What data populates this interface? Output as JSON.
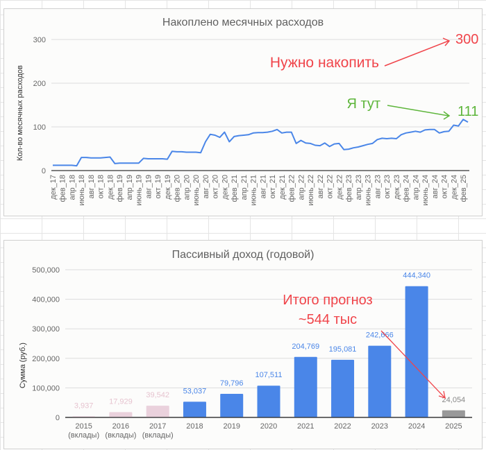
{
  "chart_data": [
    {
      "type": "line",
      "title": "Накоплено месячных расходов",
      "xlabel": "",
      "ylabel": "Кол-во месячных расходов",
      "ylim": [
        0,
        300
      ],
      "yticks": [
        "0",
        "100",
        "200",
        "300"
      ],
      "grid": true,
      "x_tick_labels": [
        "дек_17",
        "фев_18",
        "апр_18",
        "июнь_18",
        "авг_18",
        "окт_18",
        "дек_18",
        "фев_19",
        "апр_19",
        "июнь_19",
        "авг_19",
        "окт_19",
        "дек_19",
        "фев_20",
        "апр_20",
        "июнь_20",
        "авг_20",
        "окт_20",
        "дек_20",
        "фев_21",
        "апр_21",
        "июнь_21",
        "авг_21",
        "окт_21",
        "дек_21",
        "фев_22",
        "апр_22",
        "июнь_22",
        "авг_22",
        "окт_22",
        "дек_22",
        "фев_23",
        "апр_23",
        "июнь_23",
        "авг_23",
        "окт_23",
        "дек_23",
        "фев_24",
        "апр_24",
        "июнь_24",
        "авг_24",
        "окт_24",
        "дек_24",
        "фев_25"
      ],
      "series": [
        {
          "name": "Накоплено",
          "color": "#4a86e8",
          "values": [
            12,
            12,
            12,
            12,
            12,
            11,
            30,
            30,
            29,
            29,
            29,
            30,
            31,
            16,
            17,
            17,
            17,
            17,
            17,
            28,
            27,
            27,
            27,
            27,
            26,
            44,
            43,
            43,
            42,
            42,
            42,
            41,
            66,
            83,
            81,
            76,
            88,
            66,
            78,
            80,
            81,
            82,
            86,
            87,
            87,
            88,
            90,
            94,
            86,
            88,
            88,
            62,
            69,
            63,
            62,
            58,
            57,
            63,
            55,
            61,
            62,
            48,
            49,
            52,
            54,
            57,
            60,
            62,
            71,
            74,
            73,
            74,
            73,
            82,
            86,
            88,
            90,
            88,
            93,
            94,
            94,
            86,
            89,
            90,
            104,
            102,
            117,
            111
          ]
        }
      ],
      "annotations": [
        {
          "text": "Нужно накопить",
          "color": "#f0444a"
        },
        {
          "text": "300",
          "color": "#f0444a"
        },
        {
          "text": "Я тут",
          "color": "#5db53a"
        },
        {
          "text": "111",
          "color": "#5db53a"
        }
      ]
    },
    {
      "type": "bar",
      "title": "Пассивный доход (годовой)",
      "xlabel": "",
      "ylabel": "Сумма (руб.)",
      "ylim": [
        0,
        500000
      ],
      "yticks": [
        "0",
        "100,000",
        "200,000",
        "300,000",
        "400,000",
        "500,000"
      ],
      "grid": true,
      "categories": [
        {
          "year": "2015",
          "sub": "(вклады)"
        },
        {
          "year": "2016",
          "sub": "(вклады)"
        },
        {
          "year": "2017",
          "sub": "(вклады)"
        },
        {
          "year": "2018",
          "sub": ""
        },
        {
          "year": "2019",
          "sub": ""
        },
        {
          "year": "2020",
          "sub": ""
        },
        {
          "year": "2021",
          "sub": ""
        },
        {
          "year": "2022",
          "sub": ""
        },
        {
          "year": "2023",
          "sub": ""
        },
        {
          "year": "2024",
          "sub": ""
        },
        {
          "year": "2025",
          "sub": ""
        }
      ],
      "values": [
        3937,
        17929,
        39542,
        53037,
        79796,
        107511,
        204769,
        195081,
        242666,
        444340,
        24054
      ],
      "value_labels": [
        "3,937",
        "17,929",
        "39,542",
        "53,037",
        "79,796",
        "107,511",
        "204,769",
        "195,081",
        "242,666",
        "444,340",
        "24,054"
      ],
      "bar_colors": [
        "#ead1dc",
        "#ead1dc",
        "#ead1dc",
        "#4a86e8",
        "#4a86e8",
        "#4a86e8",
        "#4a86e8",
        "#4a86e8",
        "#4a86e8",
        "#4a86e8",
        "#999999"
      ],
      "label_colors": [
        "#e6c3cf",
        "#e6c3cf",
        "#e6c3cf",
        "#4a86e8",
        "#4a86e8",
        "#4a86e8",
        "#4a86e8",
        "#4a86e8",
        "#4a86e8",
        "#4a86e8",
        "#888888"
      ],
      "annotations": [
        {
          "text": "Итого прогноз",
          "color": "#f0444a"
        },
        {
          "text": "~544 тыс",
          "color": "#f0444a"
        }
      ]
    }
  ]
}
